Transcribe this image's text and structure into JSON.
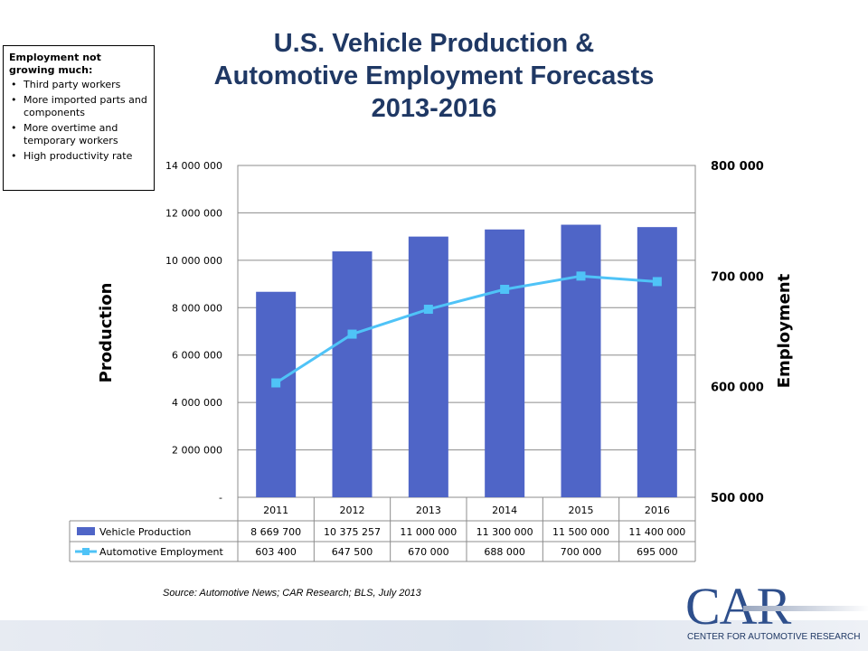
{
  "title": {
    "line1": "U.S. Vehicle Production &",
    "line2": "Automotive Employment Forecasts",
    "line3": "2013-2016"
  },
  "note": {
    "heading": "Employment not growing much:",
    "items": [
      "Third party workers",
      "More imported parts and components",
      "More overtime and temporary workers",
      "High productivity rate"
    ]
  },
  "source": "Source: Automotive News; CAR Research; BLS, July 2013",
  "logo": {
    "name": "CAR",
    "subtitle": "CENTER FOR AUTOMOTIVE RESEARCH"
  },
  "chart_data": {
    "type": "bar",
    "categories": [
      "2011",
      "2012",
      "2013",
      "2014",
      "2015",
      "2016"
    ],
    "series": [
      {
        "name": "Vehicle Production",
        "type": "bar",
        "axis": "left",
        "color": "#4f65c7",
        "values": [
          8669700,
          10375257,
          11000000,
          11300000,
          11500000,
          11400000
        ],
        "labels": [
          "8 669 700",
          "10 375 257",
          "11 000 000",
          "11 300 000",
          "11 500 000",
          "11 400 000"
        ]
      },
      {
        "name": "Automotive Employment",
        "type": "line",
        "axis": "right",
        "color": "#4fc3f7",
        "values": [
          603400,
          647500,
          670000,
          688000,
          700000,
          695000
        ],
        "labels": [
          "603 400",
          "647 500",
          "670 000",
          "688 000",
          "700 000",
          "695 000"
        ]
      }
    ],
    "ylabel": "Production",
    "y2label": "Employment",
    "ylim": [
      0,
      14000000
    ],
    "y2lim": [
      500000,
      800000
    ],
    "yticks": [
      "-",
      "2 000 000",
      "4 000 000",
      "6 000 000",
      "8 000 000",
      "10 000 000",
      "12 000 000",
      "14 000 000"
    ],
    "y2ticks": [
      "500 000",
      "600 000",
      "700 000",
      "800 000"
    ],
    "grid": true,
    "data_table": true
  }
}
